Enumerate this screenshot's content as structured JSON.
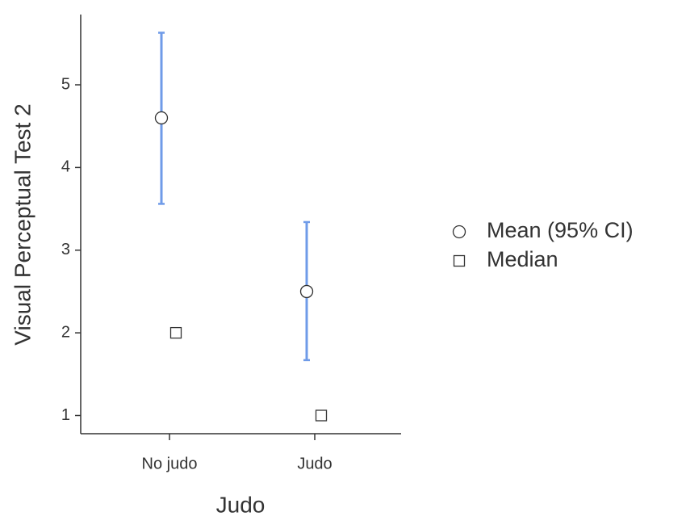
{
  "chart_data": {
    "type": "errorbar",
    "xlabel": "Judo",
    "ylabel": "Visual Perceptual Test 2",
    "categories": [
      "No judo",
      "Judo"
    ],
    "series": [
      {
        "name": "Mean (95% CI)",
        "marker": "circle",
        "color": "#6f9be8",
        "values": [
          4.6,
          2.5
        ],
        "lower": [
          3.56,
          1.67
        ],
        "upper": [
          5.63,
          3.34
        ]
      },
      {
        "name": "Median",
        "marker": "square",
        "values": [
          2,
          1
        ]
      }
    ],
    "ylim": [
      0.78,
      5.85
    ],
    "yticks": [
      1,
      2,
      3,
      4,
      5
    ],
    "grid": false,
    "legend": "right"
  }
}
